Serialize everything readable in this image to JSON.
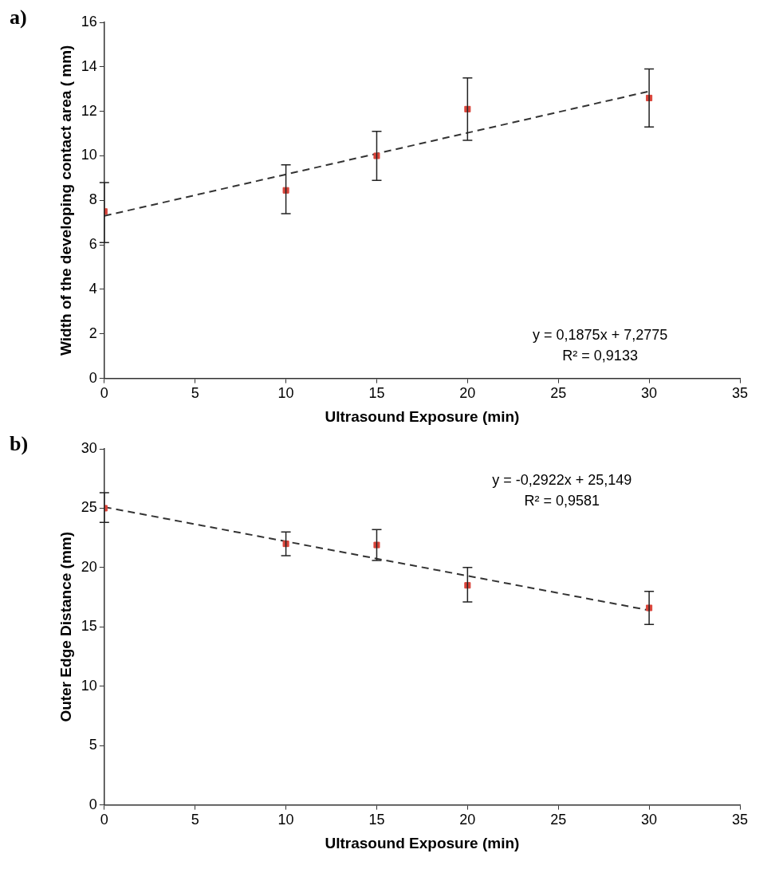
{
  "chart_data": [
    {
      "type": "scatter",
      "title": "a)",
      "xlabel": "Ultrasound Exposure (min)",
      "ylabel": "Width of the developing contact area ( mm)",
      "xlim": [
        0,
        35
      ],
      "xticks": [
        0,
        5,
        10,
        15,
        20,
        25,
        30,
        35
      ],
      "ylim": [
        0,
        16
      ],
      "yticks": [
        0,
        2,
        4,
        6,
        8,
        10,
        12,
        14,
        16
      ],
      "grid": false,
      "legend": false,
      "annotations": [
        "y = 0,1875x + 7,2775",
        "R² = 0,9133"
      ],
      "series": [
        {
          "color": "#d9443a",
          "marker": "square",
          "x": [
            0,
            10,
            15,
            20,
            30
          ],
          "values": [
            7.5,
            8.45,
            10.0,
            12.1,
            12.6
          ],
          "errors": [
            [
              6.1,
              8.8
            ],
            [
              7.4,
              9.6
            ],
            [
              8.9,
              11.1
            ],
            [
              10.7,
              13.5
            ],
            [
              11.3,
              13.9
            ]
          ]
        },
        {
          "type": "line",
          "color": "#333333",
          "marker": "none",
          "line_style": "dashed",
          "x": [
            0,
            30
          ],
          "values": [
            7.3,
            12.9
          ]
        }
      ]
    },
    {
      "type": "scatter",
      "title": "b)",
      "xlabel": "Ultrasound Exposure (min)",
      "ylabel": "Outer Edge Distance (mm)",
      "xlim": [
        0,
        35
      ],
      "xticks": [
        0,
        5,
        10,
        15,
        20,
        25,
        30,
        35
      ],
      "ylim": [
        0,
        30
      ],
      "yticks": [
        0,
        5,
        10,
        15,
        20,
        25,
        30
      ],
      "grid": false,
      "legend": false,
      "annotations": [
        "y = -0,2922x + 25,149",
        "R² = 0,9581"
      ],
      "series": [
        {
          "color": "#d9443a",
          "marker": "square",
          "x": [
            0,
            10,
            15,
            20,
            30
          ],
          "values": [
            25.0,
            22.0,
            21.9,
            18.5,
            16.6
          ],
          "errors": [
            [
              23.8,
              26.3
            ],
            [
              21.0,
              23.0
            ],
            [
              20.6,
              23.2
            ],
            [
              17.1,
              20.0
            ],
            [
              15.2,
              18.0
            ]
          ]
        },
        {
          "type": "line",
          "color": "#333333",
          "marker": "none",
          "line_style": "dashed",
          "x": [
            0,
            30
          ],
          "values": [
            25.1,
            16.4
          ]
        }
      ]
    }
  ]
}
